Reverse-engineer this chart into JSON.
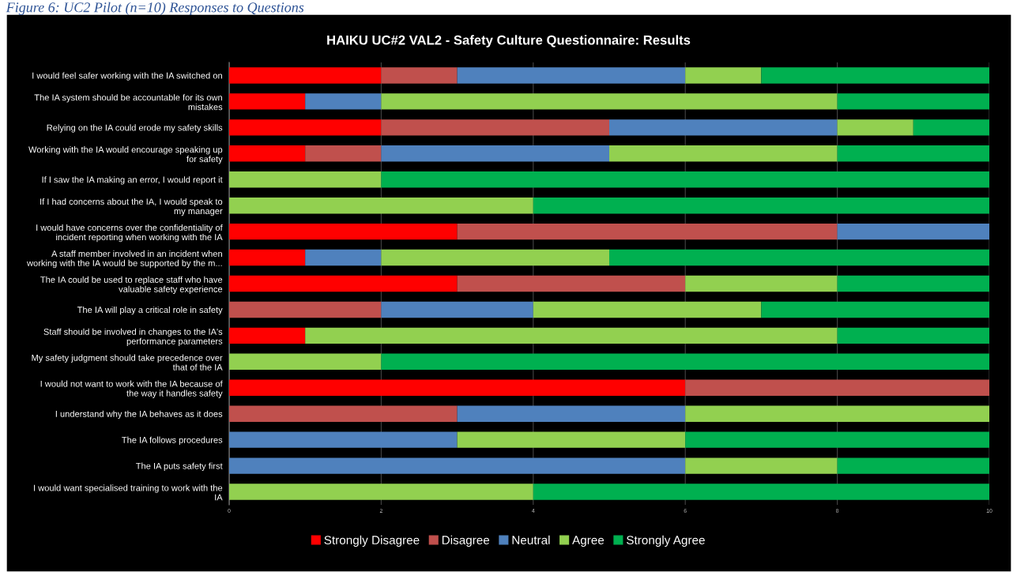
{
  "chart_data": {
    "type": "bar",
    "orientation": "horizontal",
    "stacked": true,
    "title": "HAIKU UC#2 VAL2 - Safety Culture Questionnaire: Results",
    "annotations": [
      "Figure 6: UC2 Pilot (n=10) Responses to Questions"
    ],
    "categories": [
      "I would feel safer working with the IA switched on",
      "The IA system should be accountable for its own mistakes",
      "Relying on the IA could erode my safety skills",
      "Working with the IA would encourage speaking up for safety",
      "If I saw the IA making an error, I would report it",
      "If I had concerns about the IA, I would speak to my manager",
      "I would have concerns over the confidentiality of incident reporting when working with the IA",
      "A staff member involved in an incident when working with the IA would be supported by the m...",
      "The IA could be used to replace staff who have valuable safety experience",
      "The IA will play a critical role in safety",
      "Staff should be involved in changes to the IA's performance parameters",
      "My safety judgment should take precedence over that of the IA",
      "I would not want to work with the IA because of the way it handles safety",
      "I understand why the IA behaves as it does",
      "The IA follows procedures",
      "The IA puts safety first",
      "I would want specialised training to work with the IA"
    ],
    "series": [
      {
        "name": "Strongly Disagree",
        "color": "#ff0000",
        "values": [
          2,
          1,
          2,
          1,
          0,
          0,
          3,
          1,
          3,
          0,
          1,
          0,
          6,
          0,
          0,
          0,
          0
        ]
      },
      {
        "name": "Disagree",
        "color": "#c0504d",
        "values": [
          1,
          0,
          3,
          1,
          0,
          0,
          5,
          0,
          3,
          2,
          0,
          0,
          4,
          3,
          0,
          0,
          0
        ]
      },
      {
        "name": "Neutral",
        "color": "#4f81bd",
        "values": [
          3,
          1,
          3,
          3,
          0,
          0,
          2,
          1,
          0,
          2,
          0,
          0,
          0,
          3,
          3,
          6,
          0
        ]
      },
      {
        "name": "Agree",
        "color": "#92d050",
        "values": [
          1,
          6,
          1,
          3,
          2,
          4,
          0,
          3,
          2,
          3,
          7,
          2,
          0,
          4,
          3,
          2,
          4
        ]
      },
      {
        "name": "Strongly Agree",
        "color": "#00b050",
        "values": [
          3,
          2,
          1,
          2,
          8,
          6,
          0,
          5,
          2,
          3,
          2,
          8,
          0,
          0,
          4,
          2,
          6
        ]
      }
    ],
    "xlim": [
      0,
      10
    ],
    "xticks": [
      0,
      2,
      4,
      6,
      8,
      10
    ],
    "grid": "x",
    "legend": "bottom"
  }
}
